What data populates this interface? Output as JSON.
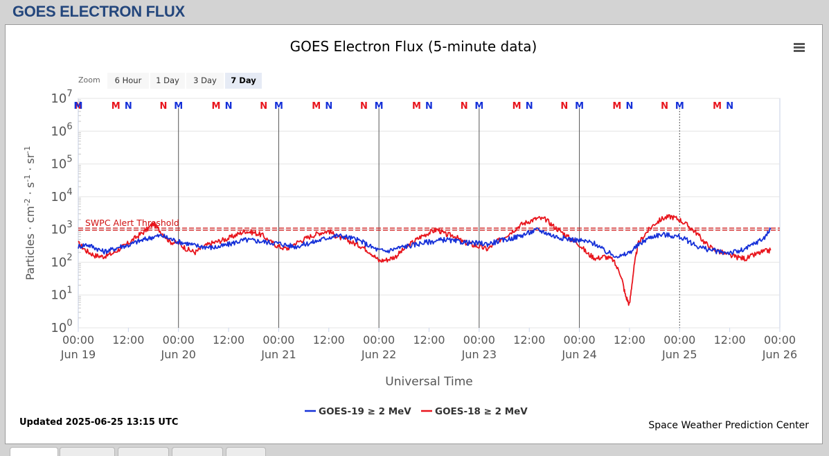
{
  "page": {
    "title": "GOES ELECTRON FLUX"
  },
  "zoom": {
    "label": "Zoom",
    "buttons": [
      "6 Hour",
      "1 Day",
      "3 Day",
      "7 Day"
    ],
    "selected": "7 Day"
  },
  "footer": {
    "updated": "Updated 2025-06-25 13:15 UTC",
    "credit": "Space Weather Prediction Center"
  },
  "colors": {
    "goes19": "#1530d8",
    "goes18": "#e8141c",
    "threshold": "#d01010",
    "header": "#23467c"
  },
  "icons": {
    "menu": "hamburger-menu-icon"
  },
  "chart_data": {
    "type": "line",
    "title": "GOES Electron Flux (5-minute data)",
    "xlabel": "Universal Time",
    "ylabel_parts": [
      "Particles · cm",
      "-2",
      " · s",
      "-1",
      " · sr",
      "-1"
    ],
    "y_scale": "log",
    "ylim": [
      1,
      10000000
    ],
    "y_ticks": [
      {
        "base": "10",
        "exp": "0"
      },
      {
        "base": "10",
        "exp": "1"
      },
      {
        "base": "10",
        "exp": "2"
      },
      {
        "base": "10",
        "exp": "3"
      },
      {
        "base": "10",
        "exp": "4"
      },
      {
        "base": "10",
        "exp": "5"
      },
      {
        "base": "10",
        "exp": "6"
      },
      {
        "base": "10",
        "exp": "7"
      }
    ],
    "xlim": [
      "2025-06-19 00:00",
      "2025-06-26 00:00"
    ],
    "x_ticks": [
      {
        "time": "00:00",
        "date": "Jun 19"
      },
      {
        "time": "12:00",
        "date": ""
      },
      {
        "time": "00:00",
        "date": "Jun 20"
      },
      {
        "time": "12:00",
        "date": ""
      },
      {
        "time": "00:00",
        "date": "Jun 21"
      },
      {
        "time": "12:00",
        "date": ""
      },
      {
        "time": "00:00",
        "date": "Jun 22"
      },
      {
        "time": "12:00",
        "date": ""
      },
      {
        "time": "00:00",
        "date": "Jun 23"
      },
      {
        "time": "12:00",
        "date": ""
      },
      {
        "time": "00:00",
        "date": "Jun 24"
      },
      {
        "time": "12:00",
        "date": ""
      },
      {
        "time": "00:00",
        "date": "Jun 25"
      },
      {
        "time": "12:00",
        "date": ""
      },
      {
        "time": "00:00",
        "date": "Jun 26"
      }
    ],
    "threshold": {
      "label": "SWPC Alert Threshold",
      "value": 1000
    },
    "grid": true,
    "legend_position": "bottom-center",
    "series": [
      {
        "name": "GOES-19 ≥ 2 MeV",
        "color": "#1530d8",
        "x_hours": [
          0,
          2,
          4,
          6,
          8,
          10,
          12,
          14,
          16,
          18,
          20,
          22,
          24,
          26,
          28,
          30,
          32,
          34,
          36,
          38,
          40,
          42,
          44,
          46,
          48,
          50,
          52,
          54,
          56,
          58,
          60,
          62,
          64,
          66,
          68,
          70,
          72,
          74,
          76,
          78,
          80,
          82,
          84,
          86,
          88,
          90,
          92,
          94,
          96,
          98,
          100,
          102,
          104,
          106,
          108,
          110,
          112,
          114,
          116,
          118,
          120,
          122,
          124,
          126,
          128,
          130,
          132,
          134,
          136,
          138,
          140,
          142,
          144,
          146,
          148,
          150,
          152,
          154,
          156,
          158,
          160,
          162,
          164,
          165.8
        ],
        "y": [
          300,
          350,
          280,
          210,
          240,
          300,
          330,
          420,
          500,
          600,
          650,
          520,
          420,
          380,
          320,
          300,
          280,
          300,
          350,
          420,
          480,
          460,
          430,
          400,
          380,
          330,
          300,
          350,
          400,
          480,
          580,
          650,
          600,
          520,
          420,
          300,
          230,
          220,
          260,
          300,
          330,
          380,
          420,
          450,
          500,
          430,
          420,
          380,
          380,
          360,
          420,
          480,
          550,
          650,
          800,
          980,
          800,
          620,
          550,
          500,
          460,
          420,
          360,
          220,
          170,
          150,
          200,
          320,
          500,
          650,
          700,
          650,
          600,
          450,
          320,
          260,
          230,
          200,
          200,
          210,
          260,
          380,
          520,
          1000
        ]
      },
      {
        "name": "GOES-18 ≥ 2 MeV",
        "color": "#e8141c",
        "x_hours": [
          0,
          2,
          4,
          6,
          8,
          10,
          12,
          14,
          16,
          18,
          20,
          22,
          24,
          26,
          28,
          30,
          32,
          34,
          36,
          38,
          40,
          42,
          44,
          46,
          48,
          50,
          52,
          54,
          56,
          58,
          60,
          62,
          64,
          66,
          68,
          70,
          72,
          74,
          76,
          78,
          80,
          82,
          84,
          86,
          88,
          90,
          92,
          94,
          96,
          98,
          100,
          102,
          104,
          106,
          108,
          110,
          112,
          114,
          116,
          118,
          120,
          122,
          124,
          126,
          128,
          130,
          131,
          132,
          133,
          134,
          136,
          138,
          140,
          142,
          144,
          146,
          148,
          150,
          152,
          154,
          156,
          158,
          160,
          162,
          164,
          165.8
        ],
        "y": [
          380,
          220,
          160,
          150,
          180,
          260,
          380,
          600,
          900,
          1500,
          800,
          420,
          380,
          250,
          200,
          300,
          380,
          450,
          540,
          700,
          900,
          800,
          680,
          420,
          300,
          260,
          380,
          500,
          650,
          800,
          900,
          600,
          500,
          380,
          300,
          200,
          110,
          120,
          150,
          250,
          400,
          600,
          800,
          1000,
          700,
          650,
          420,
          350,
          300,
          250,
          400,
          600,
          900,
          1400,
          1800,
          2200,
          2000,
          1200,
          800,
          500,
          350,
          180,
          130,
          150,
          120,
          40,
          10,
          5,
          60,
          350,
          800,
          1500,
          2200,
          2500,
          2000,
          1300,
          800,
          400,
          250,
          200,
          160,
          140,
          130,
          170,
          210,
          230
        ]
      }
    ]
  }
}
